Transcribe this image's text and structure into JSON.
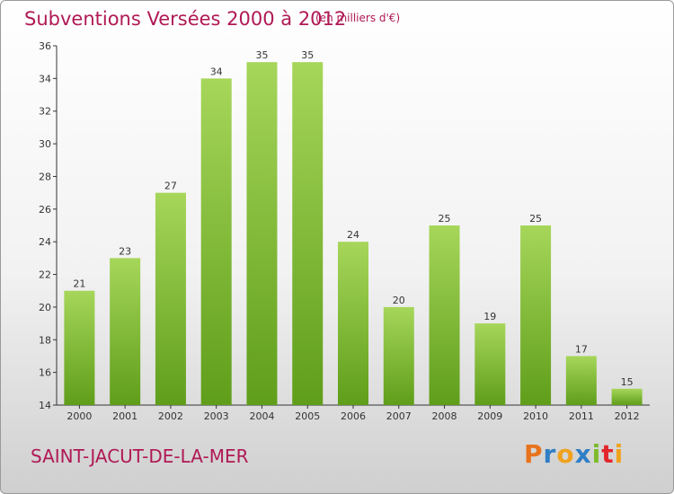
{
  "title": "Subventions Versées 2000 à 2012",
  "unit": "(en milliers d'€)",
  "commune": "SAINT-JACUT-DE-LA-MER",
  "logo": {
    "letters": [
      "P",
      "r",
      "o",
      "x",
      "i",
      "t",
      "i"
    ],
    "colors": [
      "#e8731c",
      "#2f7fc6",
      "#f0a21e",
      "#2f7fc6",
      "#7dbb2c",
      "#e3262b",
      "#f0a21e"
    ]
  },
  "colors": {
    "bar_light": "#a6d65a",
    "bar_dark": "#5f9e1a",
    "text": "#b01955",
    "axis": "#333333"
  },
  "chart_data": {
    "type": "bar",
    "categories": [
      "2000",
      "2001",
      "2002",
      "2003",
      "2004",
      "2005",
      "2006",
      "2007",
      "2008",
      "2009",
      "2010",
      "2011",
      "2012"
    ],
    "values": [
      21,
      23,
      27,
      34,
      35,
      35,
      24,
      20,
      25,
      19,
      25,
      17,
      15
    ],
    "title": "Subventions Versées 2000 à 2012",
    "ylim": [
      14,
      36
    ],
    "yticks": [
      14,
      16,
      18,
      20,
      22,
      24,
      26,
      28,
      30,
      32,
      34,
      36
    ],
    "grid": false,
    "legend": "none"
  }
}
